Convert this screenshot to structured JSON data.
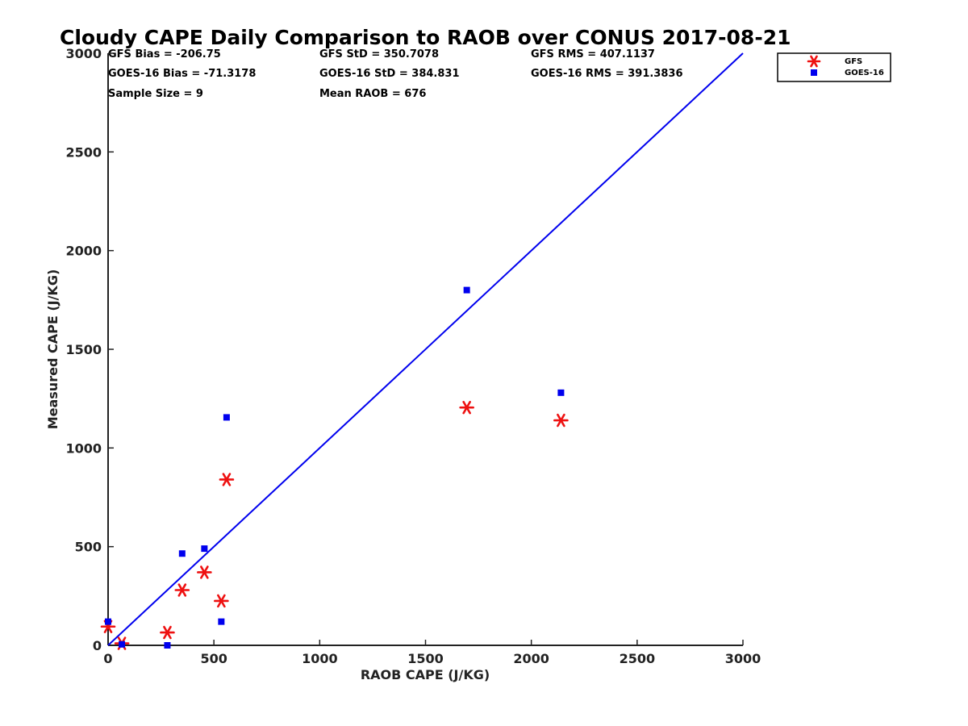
{
  "chart_data": {
    "type": "scatter",
    "title": "Cloudy CAPE Daily Comparison to RAOB over CONUS 2017-08-21",
    "xlabel": "RAOB CAPE (J/KG)",
    "ylabel": "Measured CAPE (J/KG)",
    "xlim": [
      0,
      3000
    ],
    "ylim": [
      0,
      3000
    ],
    "xticks": [
      "0",
      "500",
      "1000",
      "1500",
      "2000",
      "2500",
      "3000"
    ],
    "yticks": [
      "0",
      "500",
      "1000",
      "1500",
      "2000",
      "2500",
      "3000"
    ],
    "grid": false,
    "legend_position": "top-right",
    "stats": [
      [
        "GFS Bias = -206.75",
        "GFS StD = 350.7078",
        "GFS RMS = 407.1137"
      ],
      [
        "GOES-16 Bias = -71.3178",
        "GOES-16 StD = 384.831",
        "GOES-16 RMS = 391.3836"
      ],
      [
        "Sample Size = 9",
        "Mean RAOB = 676",
        ""
      ]
    ],
    "reference_line": {
      "x": [
        0,
        3000
      ],
      "y": [
        0,
        3000
      ],
      "color": "#0000ee"
    },
    "series": [
      {
        "name": "GFS",
        "marker": "asterisk",
        "color": "#ee1111",
        "points": [
          [
            0,
            95
          ],
          [
            65,
            10
          ],
          [
            280,
            65
          ],
          [
            350,
            280
          ],
          [
            455,
            370
          ],
          [
            535,
            225
          ],
          [
            560,
            840
          ],
          [
            1695,
            1205
          ],
          [
            2140,
            1140
          ]
        ]
      },
      {
        "name": "GOES-16",
        "marker": "square",
        "color": "#0000ee",
        "points": [
          [
            0,
            120
          ],
          [
            65,
            5
          ],
          [
            280,
            0
          ],
          [
            350,
            465
          ],
          [
            455,
            490
          ],
          [
            535,
            120
          ],
          [
            560,
            1155
          ],
          [
            1695,
            1800
          ],
          [
            2140,
            1280
          ]
        ]
      }
    ]
  }
}
